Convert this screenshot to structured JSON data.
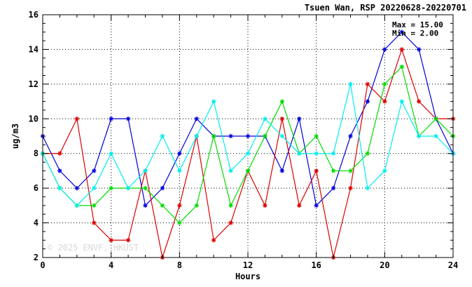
{
  "chart_data": {
    "type": "line",
    "title": "Tsuen Wan, RSP 20220628-20220701",
    "xlabel": "Hours",
    "ylabel": "ug/m3",
    "xlim": [
      0,
      24
    ],
    "ylim": [
      2,
      16
    ],
    "xticks": [
      0,
      4,
      8,
      12,
      16,
      20,
      24
    ],
    "yticks": [
      2,
      4,
      6,
      8,
      10,
      12,
      14,
      16
    ],
    "grid": true,
    "stats": {
      "max_text": "Max = 15.00",
      "min_text": "Min =  2.00"
    },
    "watermark": "© 2025  ENVF, HKUST",
    "x": [
      0,
      1,
      2,
      3,
      4,
      5,
      6,
      7,
      8,
      9,
      10,
      11,
      12,
      13,
      14,
      15,
      16,
      17,
      18,
      19,
      20,
      21,
      22,
      23,
      24
    ],
    "series": [
      {
        "color": "#0000dd",
        "values": [
          9,
          7,
          6,
          7,
          10,
          10,
          5,
          6,
          8,
          10,
          9,
          9,
          9,
          9,
          7,
          10,
          5,
          6,
          9,
          11,
          14,
          15,
          14,
          10,
          8
        ]
      },
      {
        "color": "#dd0000",
        "values": [
          8,
          8,
          10,
          4,
          3,
          3,
          7,
          2,
          5,
          9,
          3,
          4,
          7,
          5,
          10,
          5,
          7,
          2,
          6,
          12,
          11,
          14,
          11,
          10,
          10
        ]
      },
      {
        "color": "#00dd00",
        "values": [
          8,
          6,
          5,
          5,
          6,
          6,
          6,
          5,
          4,
          5,
          9,
          5,
          7,
          9,
          11,
          8,
          9,
          7,
          7,
          8,
          12,
          13,
          9,
          10,
          9
        ]
      },
      {
        "color": "#00eeee",
        "values": [
          8,
          6,
          5,
          6,
          8,
          6,
          7,
          9,
          7,
          9,
          11,
          7,
          8,
          10,
          9,
          8,
          8,
          8,
          12,
          6,
          7,
          11,
          9,
          9,
          8
        ]
      }
    ]
  }
}
